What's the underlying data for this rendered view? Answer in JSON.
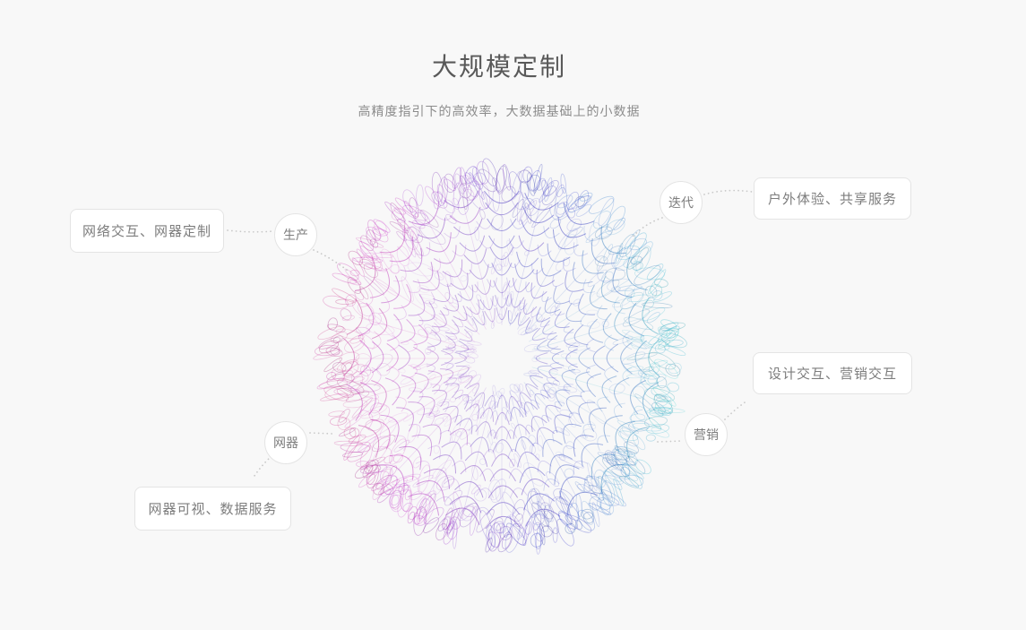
{
  "header": {
    "title": "大规模定制",
    "subtitle": "高精度指引下的高效率，大数据基础上的小数据"
  },
  "diagram": {
    "graphic": "generative-line-sphere",
    "nodes": [
      {
        "id": "production",
        "circle_label": "生产",
        "box_label": "网络交互、网器定制",
        "position": "left"
      },
      {
        "id": "iteration",
        "circle_label": "迭代",
        "box_label": "户外体验、共享服务",
        "position": "top-right"
      },
      {
        "id": "marketing",
        "circle_label": "营销",
        "box_label": "设计交互、营销交互",
        "position": "right"
      },
      {
        "id": "smart-device",
        "circle_label": "网器",
        "box_label": "网器可视、数据服务",
        "position": "bottom-left"
      }
    ],
    "colors": {
      "background": "#f8f8f8",
      "sphere_left": "#c159b5",
      "sphere_center": "#5c66bb",
      "sphere_right": "#43c8dd",
      "connector_dots": "#c9c9c9",
      "node_border": "#e4e4e4",
      "node_text": "#7d7d7d",
      "title_text": "#595959",
      "subtitle_text": "#8c8c8c"
    }
  }
}
